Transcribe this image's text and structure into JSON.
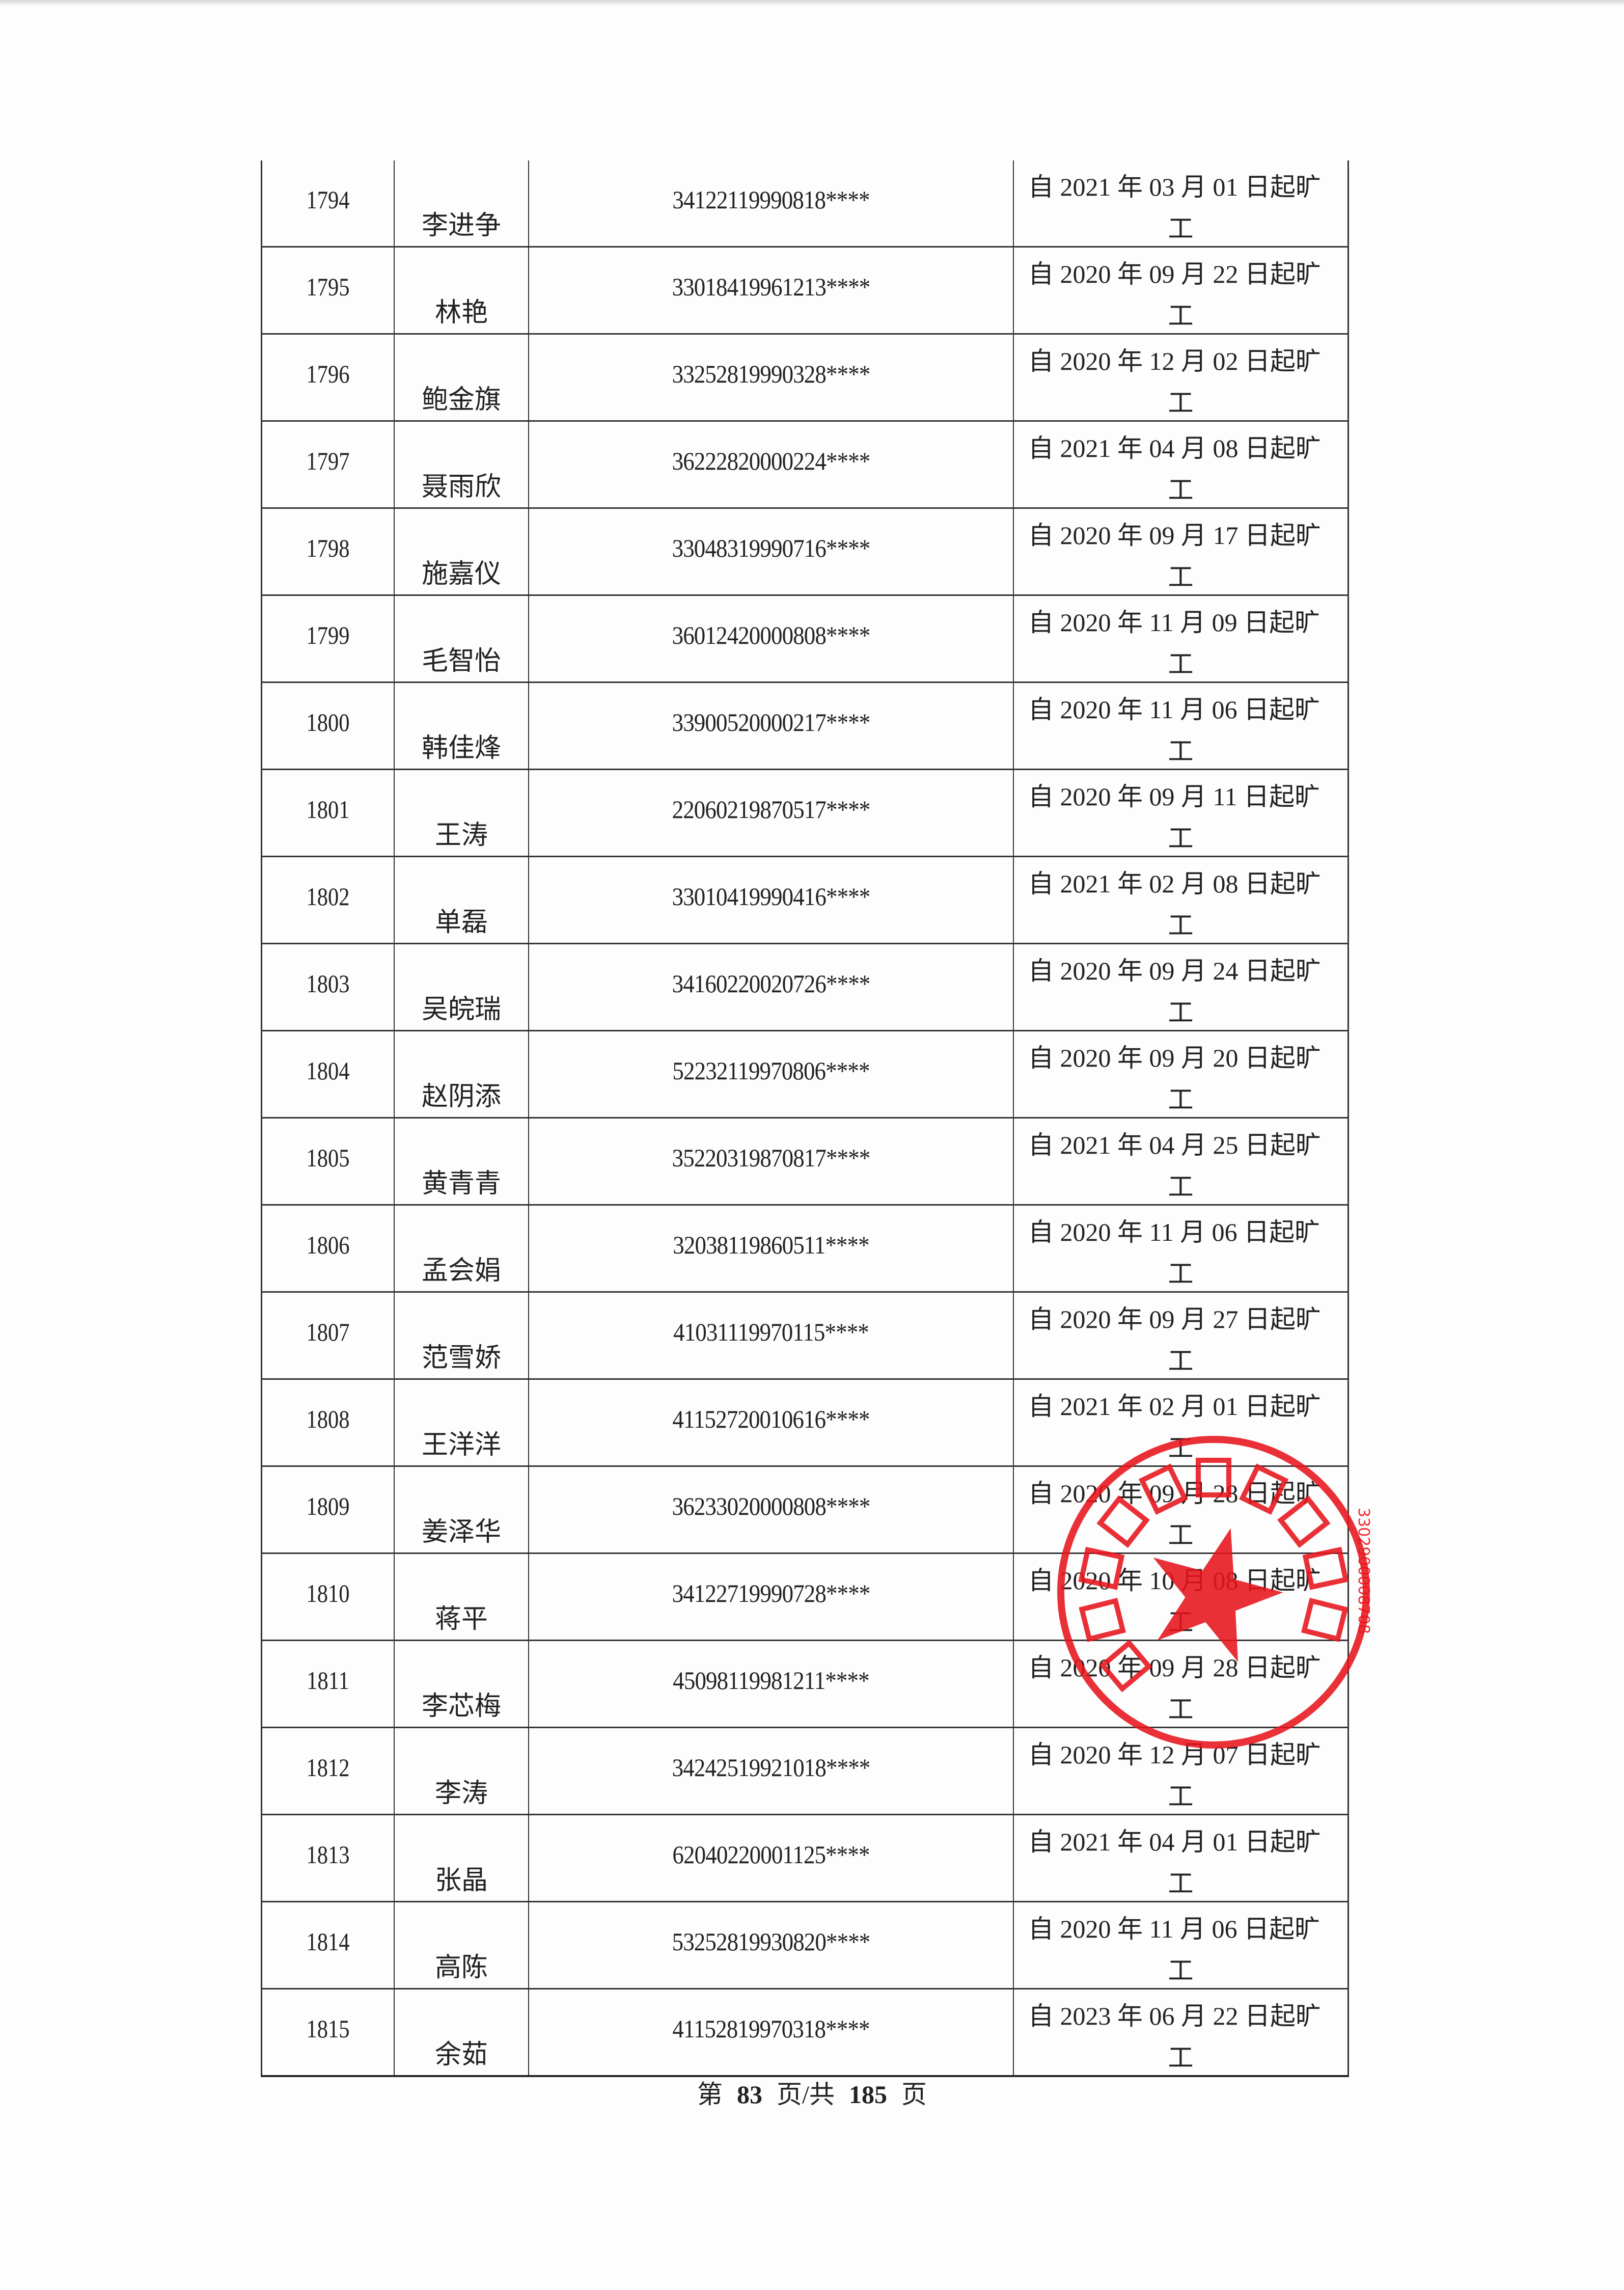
{
  "rows": [
    {
      "no": "1794",
      "name": "李进争",
      "id": "34122119990818****",
      "date": "自 2021 年 03 月 01 日起旷",
      "date2": "工"
    },
    {
      "no": "1795",
      "name": "林艳",
      "id": "33018419961213****",
      "date": "自 2020 年 09 月 22 日起旷",
      "date2": "工"
    },
    {
      "no": "1796",
      "name": "鲍金旗",
      "id": "33252819990328****",
      "date": "自 2020 年 12 月 02 日起旷",
      "date2": "工"
    },
    {
      "no": "1797",
      "name": "聂雨欣",
      "id": "36222820000224****",
      "date": "自 2021 年 04 月 08 日起旷",
      "date2": "工"
    },
    {
      "no": "1798",
      "name": "施嘉仪",
      "id": "33048319990716****",
      "date": "自 2020 年 09 月 17 日起旷",
      "date2": "工"
    },
    {
      "no": "1799",
      "name": "毛智怡",
      "id": "36012420000808****",
      "date": "自 2020 年 11 月 09 日起旷",
      "date2": "工"
    },
    {
      "no": "1800",
      "name": "韩佳烽",
      "id": "33900520000217****",
      "date": "自 2020 年 11 月 06 日起旷",
      "date2": "工"
    },
    {
      "no": "1801",
      "name": "王涛",
      "id": "22060219870517****",
      "date": "自 2020 年 09 月 11 日起旷",
      "date2": "工"
    },
    {
      "no": "1802",
      "name": "单磊",
      "id": "33010419990416****",
      "date": "自 2021 年 02 月 08 日起旷",
      "date2": "工"
    },
    {
      "no": "1803",
      "name": "吴皖瑞",
      "id": "34160220020726****",
      "date": "自 2020 年 09 月 24 日起旷",
      "date2": "工"
    },
    {
      "no": "1804",
      "name": "赵阴添",
      "id": "52232119970806****",
      "date": "自 2020 年 09 月 20 日起旷",
      "date2": "工"
    },
    {
      "no": "1805",
      "name": "黄青青",
      "id": "35220319870817****",
      "date": "自 2021 年 04 月 25 日起旷",
      "date2": "工"
    },
    {
      "no": "1806",
      "name": "孟会娟",
      "id": "32038119860511****",
      "date": "自 2020 年 11 月 06 日起旷",
      "date2": "工"
    },
    {
      "no": "1807",
      "name": "范雪娇",
      "id": "41031119970115****",
      "date": "自 2020 年 09 月 27 日起旷",
      "date2": "工"
    },
    {
      "no": "1808",
      "name": "王洋洋",
      "id": "41152720010616****",
      "date": "自 2021 年 02 月 01 日起旷",
      "date2": "工"
    },
    {
      "no": "1809",
      "name": "姜泽华",
      "id": "36233020000808****",
      "date": "自 2020 年 09 月 28 日起旷",
      "date2": "工"
    },
    {
      "no": "1810",
      "name": "蒋平",
      "id": "34122719990728****",
      "date": "自 2020 年 10 月 08 日起旷",
      "date2": "工"
    },
    {
      "no": "1811",
      "name": "李芯梅",
      "id": "45098119981211****",
      "date": "自 2020 年 09 月 28 日起旷",
      "date2": "工"
    },
    {
      "no": "1812",
      "name": "李涛",
      "id": "34242519921018****",
      "date": "自 2020 年 12 月 07 日起旷",
      "date2": "工"
    },
    {
      "no": "1813",
      "name": "张晶",
      "id": "62040220001125****",
      "date": "自 2021 年 04 月 01 日起旷",
      "date2": "工"
    },
    {
      "no": "1814",
      "name": "高陈",
      "id": "53252819930820****",
      "date": "自 2020 年 11 月 06 日起旷",
      "date2": "工"
    },
    {
      "no": "1815",
      "name": "余茹",
      "id": "41152819970318****",
      "date": "自 2023 年 06 月 22 日起旷",
      "date2": "工"
    }
  ],
  "footer": {
    "prefix": "第",
    "current": "83",
    "middle": "页/共",
    "total": "185",
    "suffix": "页"
  },
  "seal": {
    "number": "3302900008708",
    "color": "#e8141c"
  }
}
